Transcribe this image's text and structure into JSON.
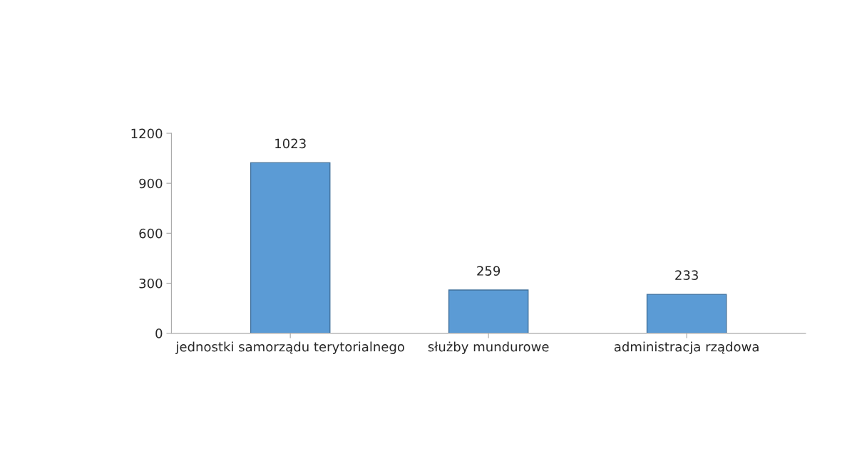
{
  "chart_data": {
    "type": "bar",
    "categories": [
      "jednostki samorządu terytorialnego",
      "służby mundurowe",
      "administracja rządowa"
    ],
    "values": [
      1023,
      259,
      233
    ],
    "color": "#5b9bd5",
    "ylim": [
      0,
      1200
    ],
    "yticks": [
      0,
      300,
      600,
      900,
      1200
    ],
    "grid": false,
    "data_labels": true
  }
}
